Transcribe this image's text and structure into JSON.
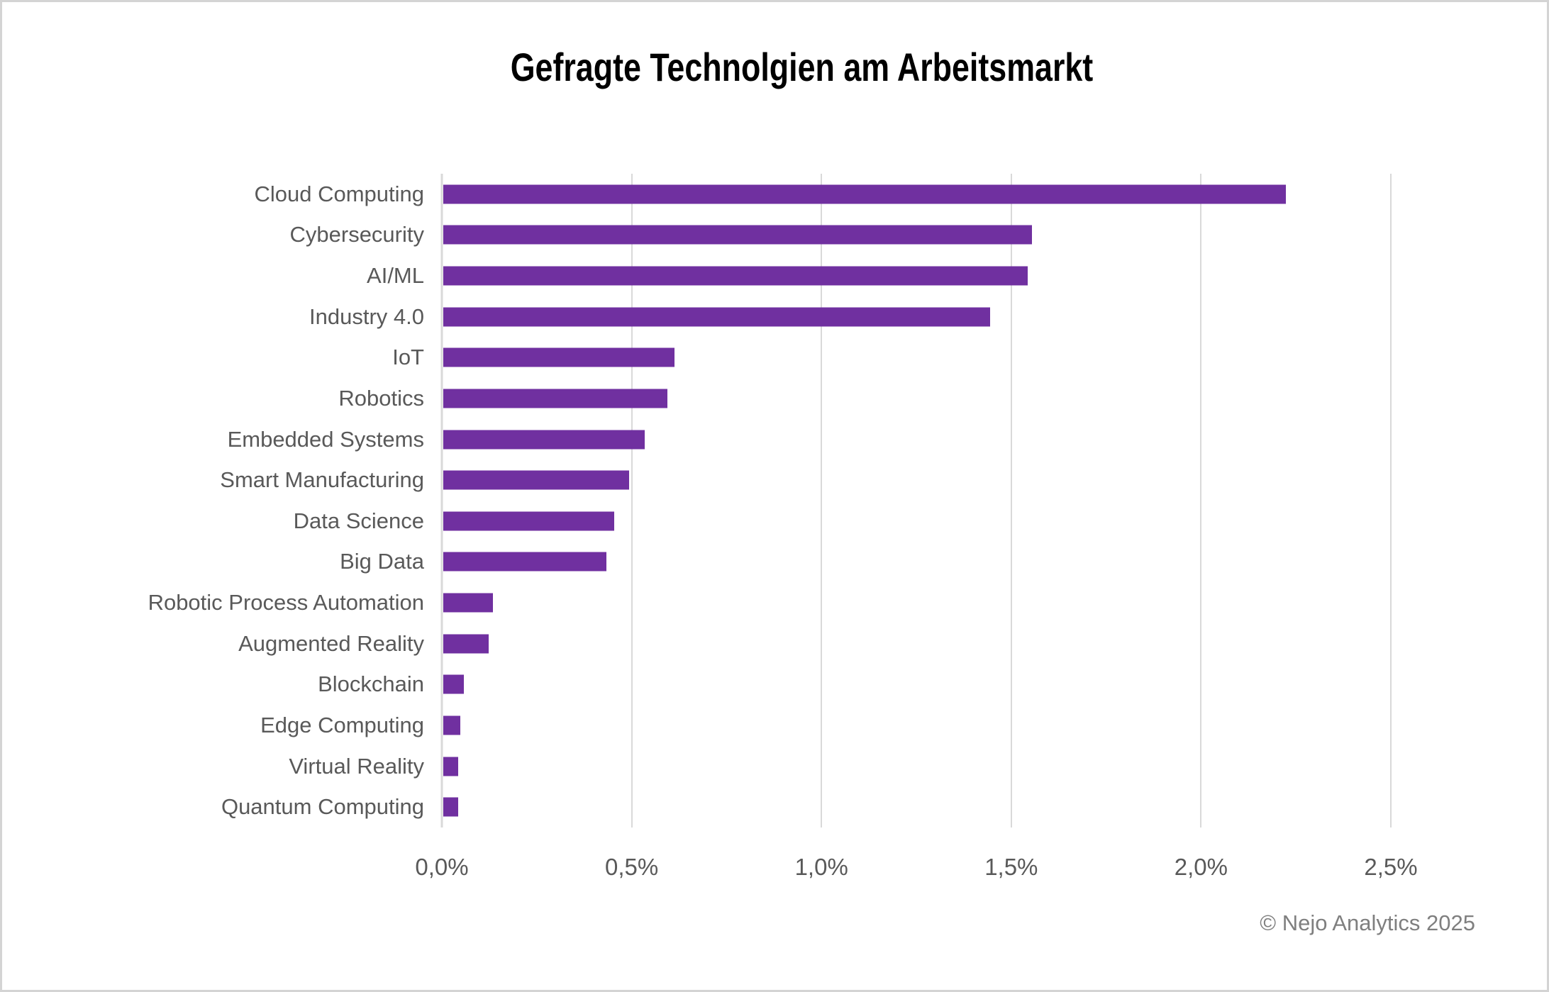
{
  "page": {
    "background": "#ffffff",
    "frame_color": "#d4d4d4"
  },
  "chart_data": {
    "type": "bar",
    "orientation": "horizontal",
    "title": "Gefragte Technolgien am Arbeitsmarkt",
    "categories": [
      "Cloud Computing",
      "Cybersecurity",
      "AI/ML",
      "Industry 4.0",
      "IoT",
      "Robotics",
      "Embedded Systems",
      "Smart Manufacturing",
      "Data Science",
      "Big Data",
      "Robotic Process Automation",
      "Augmented Reality",
      "Blockchain",
      "Edge Computing",
      "Virtual Reality",
      "Quantum Computing"
    ],
    "values": [
      2.22,
      1.55,
      1.54,
      1.44,
      0.61,
      0.59,
      0.53,
      0.49,
      0.45,
      0.43,
      0.13,
      0.12,
      0.055,
      0.045,
      0.04,
      0.04
    ],
    "unit": "%",
    "xlabel": "",
    "ylabel": "",
    "xlim": [
      0,
      2.5
    ],
    "x_ticks": [
      {
        "value": 0.0,
        "label": "0,0%"
      },
      {
        "value": 0.5,
        "label": "0,5%"
      },
      {
        "value": 1.0,
        "label": "1,0%"
      },
      {
        "value": 1.5,
        "label": "1,5%"
      },
      {
        "value": 2.0,
        "label": "2,0%"
      },
      {
        "value": 2.5,
        "label": "2,5%"
      }
    ],
    "grid": "vertical-only",
    "legend": "none",
    "bar_color": "#7030A0",
    "label_color": "#595959",
    "grid_color": "#d9d9d9",
    "footer": "© Nejo Analytics 2025"
  }
}
